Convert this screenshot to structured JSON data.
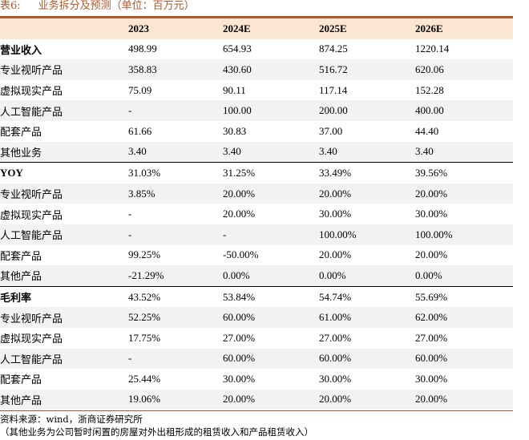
{
  "caption": {
    "number": "表6:",
    "title": "业务拆分及预测（单位：百万元）"
  },
  "columns": [
    "",
    "2023",
    "2024E",
    "2025E",
    "2026E"
  ],
  "rows": [
    {
      "label": "营业收入",
      "values": [
        "498.99",
        "654.93",
        "874.25",
        "1220.14"
      ],
      "section": true
    },
    {
      "label": "专业视听产品",
      "values": [
        "358.83",
        "430.60",
        "516.72",
        "620.06"
      ]
    },
    {
      "label": "虚拟现实产品",
      "values": [
        "75.09",
        "90.11",
        "117.14",
        "152.28"
      ]
    },
    {
      "label": "人工智能产品",
      "values": [
        "-",
        "100.00",
        "200.00",
        "400.00"
      ]
    },
    {
      "label": "配套产品",
      "values": [
        "61.66",
        "30.83",
        "37.00",
        "44.40"
      ]
    },
    {
      "label": "其他业务",
      "values": [
        "3.40",
        "3.40",
        "3.40",
        "3.40"
      ]
    },
    {
      "label": "YOY",
      "values": [
        "31.03%",
        "31.25%",
        "33.49%",
        "39.56%"
      ],
      "section": true
    },
    {
      "label": "专业视听产品",
      "values": [
        "3.85%",
        "20.00%",
        "20.00%",
        "20.00%"
      ]
    },
    {
      "label": "虚拟现实产品",
      "values": [
        "-",
        "20.00%",
        "30.00%",
        "30.00%"
      ]
    },
    {
      "label": "人工智能产品",
      "values": [
        "-",
        "-",
        "100.00%",
        "100.00%"
      ]
    },
    {
      "label": "配套产品",
      "values": [
        "99.25%",
        "-50.00%",
        "20.00%",
        "20.00%"
      ]
    },
    {
      "label": "其他产品",
      "values": [
        "-21.29%",
        "0.00%",
        "0.00%",
        "0.00%"
      ]
    },
    {
      "label": "毛利率",
      "values": [
        "43.52%",
        "53.84%",
        "54.74%",
        "55.69%"
      ],
      "section": true
    },
    {
      "label": "专业视听产品",
      "values": [
        "52.25%",
        "60.00%",
        "61.00%",
        "62.00%"
      ]
    },
    {
      "label": "虚拟现实产品",
      "values": [
        "17.75%",
        "27.00%",
        "27.00%",
        "27.00%"
      ]
    },
    {
      "label": "人工智能产品",
      "values": [
        "-",
        "60.00%",
        "60.00%",
        "60.00%"
      ]
    },
    {
      "label": "配套产品",
      "values": [
        "25.44%",
        "30.00%",
        "30.00%",
        "30.00%"
      ]
    },
    {
      "label": "其他产品",
      "values": [
        "19.06%",
        "20.00%",
        "20.00%",
        "20.00%"
      ]
    }
  ],
  "notes": [
    "资料来源：wind，浙商证券研究所",
    "（其他业务为公司暂时闲置的房屋对外出租形成的租赁收入和产品租赁收入）"
  ],
  "colors": {
    "accent": "#b5562a",
    "header_bg": "#fbe6d2",
    "alt_row_bg": "#f2f2f2"
  }
}
